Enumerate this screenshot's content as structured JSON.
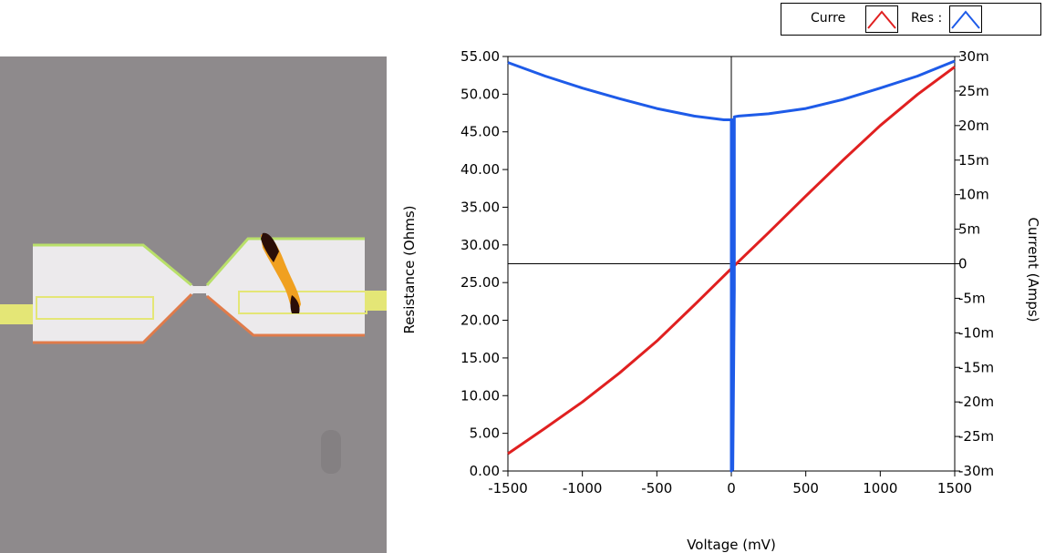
{
  "photo": {
    "colors": {
      "background": "#8e8a8c",
      "pad": "#eceaec",
      "pad_outline_top": "#b9e06a",
      "pad_outline_bottom": "#e07b4a",
      "trace": "#e4e676",
      "burn_dark": "#2a0e08",
      "burn_orange": "#f0a020"
    }
  },
  "legend": {
    "items": [
      {
        "label": "Curre",
        "color": "#e02020",
        "icon": "line-sample-icon"
      },
      {
        "label": "Res :",
        "color": "#1e5be8",
        "icon": "line-sample-icon"
      }
    ]
  },
  "chart_data": {
    "type": "line",
    "xlabel": "Voltage (mV)",
    "ylabel": "Resistance (Ohms)",
    "y2label": "Current (Amps)",
    "xlim": [
      -1500,
      1500
    ],
    "ylim": [
      0,
      55
    ],
    "y2lim": [
      -0.03,
      0.03
    ],
    "x_ticks": [
      "-1500",
      "-1000",
      "-500",
      "0",
      "500",
      "1000",
      "1500"
    ],
    "y_ticks": [
      "0.00",
      "5.00",
      "10.00",
      "15.00",
      "20.00",
      "25.00",
      "30.00",
      "35.00",
      "40.00",
      "45.00",
      "50.00",
      "55.00"
    ],
    "y2_ticks": [
      "-30m",
      "-25m",
      "-20m",
      "-15m",
      "-10m",
      "-5m",
      "0",
      "5m",
      "10m",
      "15m",
      "20m",
      "25m",
      "30m"
    ],
    "zero_lines": true,
    "series": [
      {
        "name": "Curre",
        "axis": "right",
        "color": "#e02020",
        "x": [
          -1500,
          -1250,
          -1000,
          -750,
          -500,
          -250,
          0,
          250,
          500,
          750,
          1000,
          1250,
          1500
        ],
        "y": [
          -0.0275,
          -0.0238,
          -0.02,
          -0.0158,
          -0.0112,
          -0.006,
          -0.0007,
          0.0045,
          0.0098,
          0.015,
          0.02,
          0.0245,
          0.0285
        ]
      },
      {
        "name": "Res :",
        "axis": "left",
        "color": "#1e5be8",
        "x": [
          -1500,
          -1250,
          -1000,
          -750,
          -500,
          -250,
          -50,
          0,
          0,
          0,
          10,
          10,
          20,
          20,
          50,
          250,
          500,
          750,
          1000,
          1250,
          1500
        ],
        "y": [
          54.2,
          52.4,
          50.8,
          49.4,
          48.1,
          47.1,
          46.6,
          46.6,
          0,
          46.6,
          46.6,
          0.2,
          24.0,
          47.0,
          47.1,
          47.4,
          48.1,
          49.3,
          50.8,
          52.4,
          54.4
        ]
      }
    ]
  }
}
